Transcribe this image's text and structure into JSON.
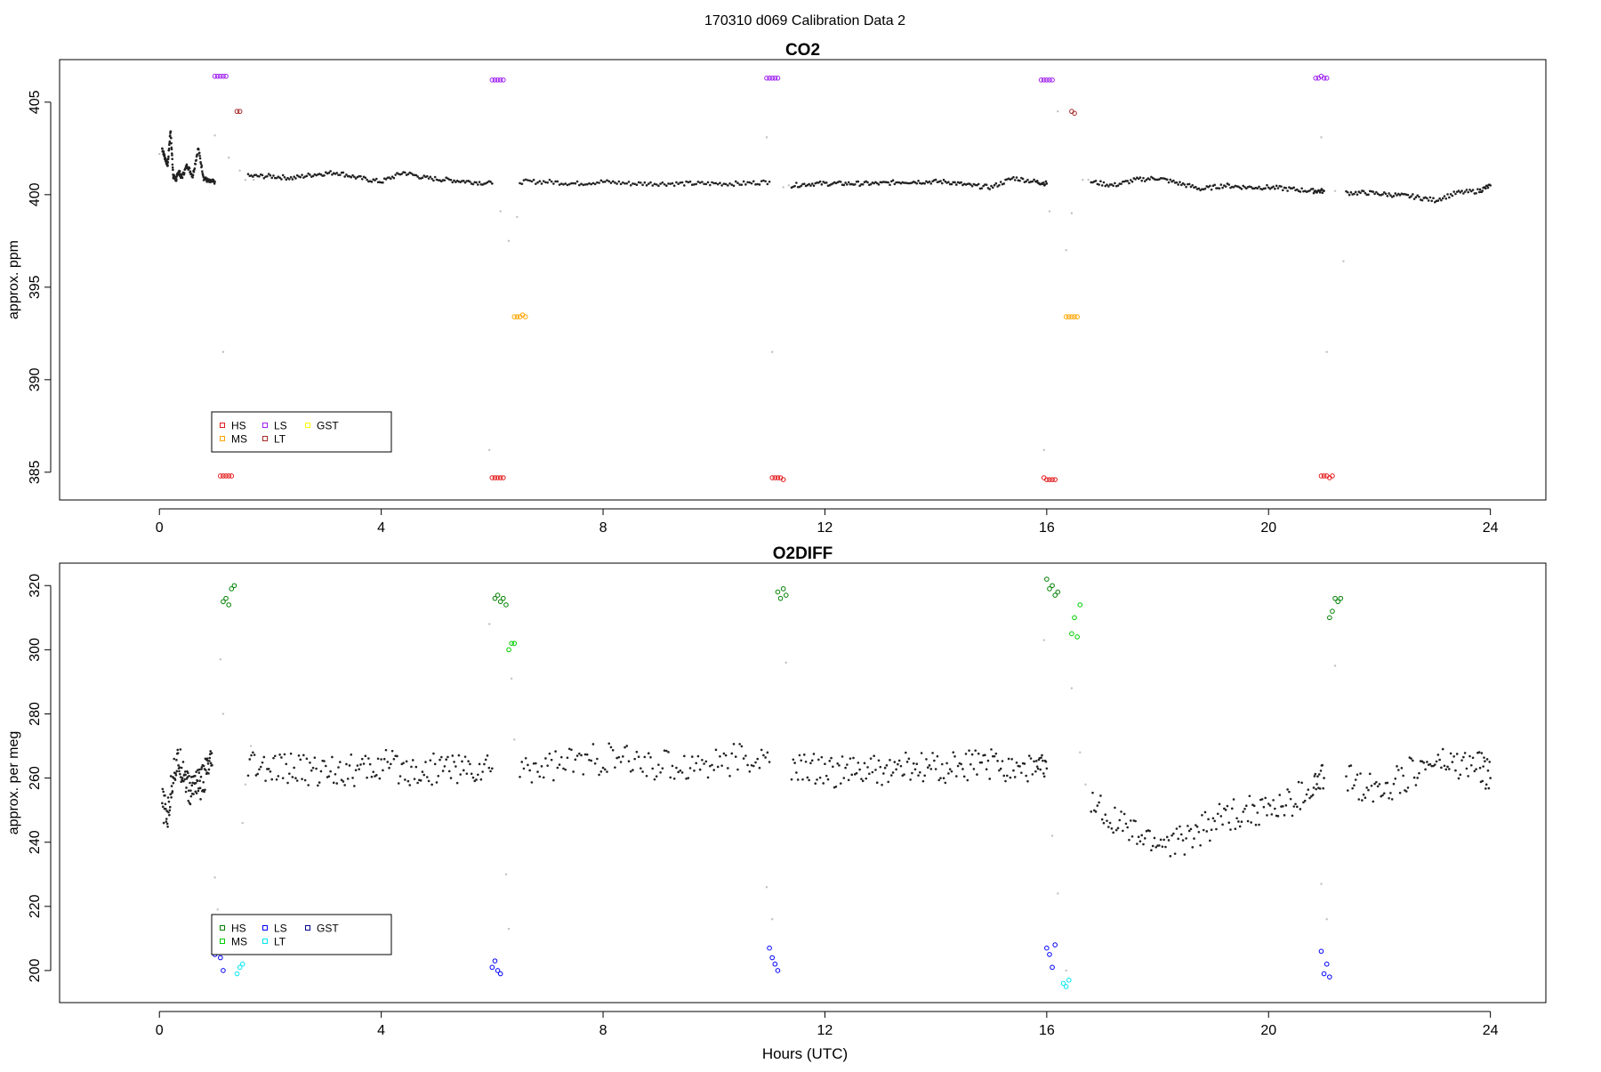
{
  "figure": {
    "suptitle": "170310   d069   Calibration Data 2",
    "x_axis_label": "Hours (UTC)"
  },
  "chart_data": [
    {
      "type": "scatter",
      "title": "CO2",
      "xlabel": "",
      "ylabel": "approx. ppm",
      "xlim": [
        -1.8,
        25
      ],
      "ylim": [
        383.5,
        407.3
      ],
      "xticks": [
        0,
        4,
        8,
        12,
        16,
        20,
        24
      ],
      "yticks": [
        385,
        390,
        395,
        400,
        405
      ],
      "grid": false,
      "legend": {
        "placement": "lower-left",
        "entries": [
          {
            "label": "HS",
            "color": "#e41a1c"
          },
          {
            "label": "MS",
            "color": "#ffa500"
          },
          {
            "label": "LS",
            "color": "#a020f0"
          },
          {
            "label": "LT",
            "color": "#a52a2a"
          },
          {
            "label": "GST",
            "color": "#ffff00"
          }
        ]
      },
      "ambient_series": {
        "name": "",
        "color": "#222222",
        "segments": [
          {
            "x": [
              0.05,
              0.1,
              0.15,
              0.2,
              0.25,
              0.3,
              0.35,
              0.4,
              0.5,
              0.6,
              0.7,
              0.8,
              0.9,
              1.0
            ],
            "y": [
              402.5,
              402.0,
              401.6,
              403.5,
              401.0,
              400.8,
              401.3,
              400.9,
              401.6,
              401.0,
              402.5,
              400.9,
              400.7,
              400.7
            ]
          },
          {
            "x": [
              1.6,
              2.0,
              2.4,
              2.8,
              3.2,
              3.6,
              4.0,
              4.4,
              4.8,
              5.2,
              5.6,
              6.0
            ],
            "y": [
              401.0,
              401.0,
              400.9,
              401.1,
              401.2,
              400.9,
              400.7,
              401.2,
              400.9,
              400.8,
              400.7,
              400.6
            ]
          },
          {
            "x": [
              6.5,
              7.0,
              7.5,
              8.0,
              8.5,
              9.0,
              9.5,
              10.0,
              10.5,
              11.0
            ],
            "y": [
              400.7,
              400.7,
              400.6,
              400.7,
              400.6,
              400.6,
              400.6,
              400.6,
              400.6,
              400.7
            ]
          },
          {
            "x": [
              11.4,
              11.8,
              12.2,
              12.6,
              13.0,
              13.4,
              13.8,
              14.2,
              14.6,
              15.0,
              15.4,
              15.8,
              16.0
            ],
            "y": [
              400.5,
              400.6,
              400.6,
              400.6,
              400.6,
              400.7,
              400.7,
              400.7,
              400.5,
              400.4,
              400.9,
              400.7,
              400.6
            ]
          },
          {
            "x": [
              16.8,
              17.2,
              17.6,
              18.0,
              18.4,
              18.8,
              19.2,
              19.6,
              20.0,
              20.4,
              20.8,
              21.0
            ],
            "y": [
              400.7,
              400.5,
              400.8,
              400.9,
              400.6,
              400.3,
              400.5,
              400.4,
              400.4,
              400.3,
              400.2,
              400.2
            ]
          },
          {
            "x": [
              21.4,
              21.8,
              22.2,
              22.6,
              23.0,
              23.4,
              23.8,
              24.0
            ],
            "y": [
              400.1,
              400.1,
              400.0,
              399.9,
              399.7,
              400.1,
              400.2,
              400.5
            ]
          }
        ]
      },
      "transition_series": {
        "name": "",
        "color": "#c0c0c0",
        "x": [
          0.0,
          1.0,
          1.15,
          1.25,
          1.45,
          1.55,
          1.7,
          5.95,
          6.15,
          6.3,
          6.45,
          6.55,
          10.95,
          11.05,
          11.25,
          11.35,
          15.95,
          16.05,
          16.2,
          16.35,
          16.45,
          16.65,
          16.75,
          20.95,
          21.05,
          21.2,
          21.35
        ],
        "y": [
          402.2,
          403.2,
          391.5,
          402.0,
          401.3,
          400.8,
          400.8,
          386.2,
          399.1,
          397.5,
          398.8,
          400.6,
          403.1,
          391.5,
          400.4,
          400.5,
          386.2,
          399.1,
          404.5,
          397.0,
          399.0,
          400.8,
          400.8,
          403.1,
          391.5,
          400.2,
          396.4
        ]
      },
      "calibration_series": [
        {
          "name": "HS",
          "color": "#e41a1c",
          "x": [
            1.1,
            1.15,
            1.2,
            1.25,
            1.3,
            6.0,
            6.05,
            6.1,
            6.15,
            6.2,
            11.05,
            11.1,
            11.15,
            11.2,
            11.25,
            15.95,
            16.0,
            16.05,
            16.1,
            16.15,
            20.95,
            21.0,
            21.05,
            21.1,
            21.15
          ],
          "y": [
            384.8,
            384.8,
            384.8,
            384.8,
            384.8,
            384.7,
            384.7,
            384.7,
            384.7,
            384.7,
            384.7,
            384.7,
            384.7,
            384.7,
            384.6,
            384.7,
            384.6,
            384.6,
            384.6,
            384.6,
            384.8,
            384.8,
            384.8,
            384.7,
            384.8
          ]
        },
        {
          "name": "MS",
          "color": "#ffa500",
          "x": [
            6.4,
            6.45,
            6.5,
            6.55,
            6.6,
            16.35,
            16.4,
            16.45,
            16.5,
            16.55
          ],
          "y": [
            393.4,
            393.4,
            393.4,
            393.5,
            393.4,
            393.4,
            393.4,
            393.4,
            393.4,
            393.4
          ]
        },
        {
          "name": "LS",
          "color": "#a020f0",
          "x": [
            1.0,
            1.05,
            1.1,
            1.15,
            1.2,
            6.0,
            6.05,
            6.1,
            6.15,
            6.2,
            10.95,
            11.0,
            11.05,
            11.1,
            11.15,
            15.9,
            15.95,
            16.0,
            16.05,
            16.1,
            20.85,
            20.9,
            20.95,
            21.0,
            21.05
          ],
          "y": [
            406.4,
            406.4,
            406.4,
            406.4,
            406.4,
            406.2,
            406.2,
            406.2,
            406.2,
            406.2,
            406.3,
            406.3,
            406.3,
            406.3,
            406.3,
            406.2,
            406.2,
            406.2,
            406.2,
            406.2,
            406.3,
            406.3,
            406.4,
            406.3,
            406.3
          ]
        },
        {
          "name": "LT",
          "color": "#a52a2a",
          "x": [
            1.4,
            1.45,
            16.45,
            16.5
          ],
          "y": [
            404.5,
            404.5,
            404.5,
            404.4
          ]
        },
        {
          "name": "GST",
          "color": "#ffff00",
          "x": [],
          "y": []
        }
      ]
    },
    {
      "type": "scatter",
      "title": "O2DIFF",
      "xlabel": "Hours (UTC)",
      "ylabel": "approx. per meg",
      "xlim": [
        -1.8,
        25
      ],
      "ylim": [
        190,
        327
      ],
      "xticks": [
        0,
        4,
        8,
        12,
        16,
        20,
        24
      ],
      "yticks": [
        200,
        220,
        240,
        260,
        280,
        300,
        320
      ],
      "grid": false,
      "legend": {
        "placement": "lower-left",
        "entries": [
          {
            "label": "HS",
            "color": "#008000"
          },
          {
            "label": "MS",
            "color": "#00cc00"
          },
          {
            "label": "LS",
            "color": "#0000ff"
          },
          {
            "label": "LT",
            "color": "#00e5ee"
          },
          {
            "label": "GST",
            "color": "#00008b"
          }
        ]
      },
      "ambient_series": {
        "name": "",
        "color": "#222222",
        "segments": [
          {
            "x": [
              0.05,
              0.15,
              0.25,
              0.35,
              0.45,
              0.55,
              0.65,
              0.75,
              0.85,
              0.95
            ],
            "y": [
              252,
              248,
              262,
              265,
              262,
              255,
              260,
              258,
              262,
              264
            ]
          },
          {
            "x": [
              1.6,
              2.0,
              2.4,
              2.8,
              3.2,
              3.6,
              4.0,
              4.4,
              4.8,
              5.2,
              5.6,
              6.0
            ],
            "y": [
              264,
              262,
              263,
              262,
              263,
              262,
              264,
              263,
              262,
              264,
              262,
              263
            ]
          },
          {
            "x": [
              6.5,
              7.0,
              7.5,
              8.0,
              8.5,
              9.0,
              9.5,
              10.0,
              10.5,
              11.0
            ],
            "y": [
              263,
              264,
              265,
              266,
              265,
              264,
              264,
              265,
              266,
              265
            ]
          },
          {
            "x": [
              11.4,
              11.8,
              12.2,
              12.6,
              13.0,
              13.4,
              13.8,
              14.2,
              14.6,
              15.0,
              15.4,
              15.8,
              16.0
            ],
            "y": [
              263,
              263,
              262,
              262,
              262,
              263,
              263,
              263,
              264,
              264,
              264,
              263,
              263
            ]
          },
          {
            "x": [
              16.8,
              17.2,
              17.6,
              18.0,
              18.4,
              18.8,
              19.2,
              19.6,
              20.0,
              20.4,
              20.8,
              21.0
            ],
            "y": [
              252,
              248,
              242,
              240,
              240,
              244,
              248,
              250,
              250,
              252,
              257,
              260
            ]
          },
          {
            "x": [
              21.4,
              21.8,
              22.2,
              22.6,
              23.0,
              23.4,
              23.8,
              24.0
            ],
            "y": [
              260,
              257,
              258,
              262,
              265,
              264,
              264,
              260
            ]
          }
        ]
      },
      "transition_series": {
        "name": "",
        "color": "#c0c0c0",
        "x": [
          1.0,
          1.05,
          1.1,
          1.15,
          1.5,
          1.55,
          1.65,
          5.95,
          6.25,
          6.3,
          6.35,
          6.4,
          10.95,
          11.05,
          11.3,
          15.95,
          16.1,
          16.2,
          16.35,
          16.45,
          16.6,
          16.7,
          20.95,
          21.05,
          21.2
        ],
        "y": [
          229,
          219,
          297,
          280,
          246,
          258,
          270,
          308,
          230,
          213,
          291,
          272,
          226,
          216,
          296,
          303,
          242,
          224,
          200,
          288,
          268,
          258,
          227,
          216,
          295
        ]
      },
      "calibration_series": [
        {
          "name": "HS",
          "color": "#008000",
          "x": [
            1.15,
            1.2,
            1.25,
            1.3,
            1.35,
            6.05,
            6.1,
            6.15,
            6.2,
            6.25,
            11.15,
            11.2,
            11.25,
            11.3,
            16.0,
            16.05,
            16.1,
            16.15,
            16.2,
            21.1,
            21.15,
            21.2,
            21.25,
            21.3
          ],
          "y": [
            315,
            316,
            314,
            319,
            320,
            316,
            317,
            315,
            316,
            314,
            318,
            316,
            319,
            317,
            322,
            319,
            320,
            317,
            318,
            310,
            312,
            316,
            315,
            316
          ]
        },
        {
          "name": "MS",
          "color": "#00cc00",
          "x": [
            6.3,
            6.35,
            6.4,
            16.45,
            16.5,
            16.55,
            16.6
          ],
          "y": [
            300,
            302,
            302,
            305,
            310,
            304,
            314
          ]
        },
        {
          "name": "LS",
          "color": "#0000ff",
          "x": [
            1.0,
            1.05,
            1.1,
            1.15,
            6.0,
            6.05,
            6.1,
            6.15,
            11.0,
            11.05,
            11.1,
            11.15,
            16.0,
            16.05,
            16.1,
            16.15,
            20.95,
            21.0,
            21.05,
            21.1
          ],
          "y": [
            205,
            210,
            204,
            200,
            201,
            203,
            200,
            199,
            207,
            204,
            202,
            200,
            207,
            205,
            201,
            208,
            206,
            199,
            202,
            198
          ]
        },
        {
          "name": "LT",
          "color": "#00e5ee",
          "x": [
            1.4,
            1.45,
            1.5,
            16.3,
            16.35,
            16.4
          ],
          "y": [
            199,
            201,
            202,
            196,
            195,
            197
          ]
        },
        {
          "name": "GST",
          "color": "#00008b",
          "x": [],
          "y": []
        }
      ]
    }
  ]
}
